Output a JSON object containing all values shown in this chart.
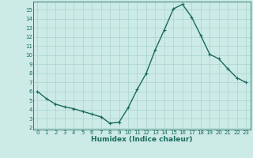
{
  "x": [
    0,
    1,
    2,
    3,
    4,
    5,
    6,
    7,
    8,
    9,
    10,
    11,
    12,
    13,
    14,
    15,
    16,
    17,
    18,
    19,
    20,
    21,
    22,
    23
  ],
  "y": [
    6.0,
    5.2,
    4.6,
    4.3,
    4.1,
    3.8,
    3.5,
    3.2,
    2.5,
    2.6,
    4.2,
    6.2,
    8.0,
    10.6,
    12.8,
    15.1,
    15.6,
    14.2,
    12.2,
    10.1,
    9.6,
    8.5,
    7.5,
    7.0
  ],
  "xlabel": "Humidex (Indice chaleur)",
  "xlim": [
    -0.5,
    23.5
  ],
  "ylim": [
    1.8,
    15.9
  ],
  "yticks": [
    2,
    3,
    4,
    5,
    6,
    7,
    8,
    9,
    10,
    11,
    12,
    13,
    14,
    15
  ],
  "xticks": [
    0,
    1,
    2,
    3,
    4,
    5,
    6,
    7,
    8,
    9,
    10,
    11,
    12,
    13,
    14,
    15,
    16,
    17,
    18,
    19,
    20,
    21,
    22,
    23
  ],
  "line_color": "#1a6b5e",
  "marker": "+",
  "bg_color": "#cceae6",
  "grid_color": "#aad4ce",
  "label_color": "#1a6b5e",
  "tick_color": "#1a6b5e",
  "tick_fontsize": 5.0,
  "xlabel_fontsize": 6.5,
  "linewidth": 1.0,
  "markersize": 3.0
}
